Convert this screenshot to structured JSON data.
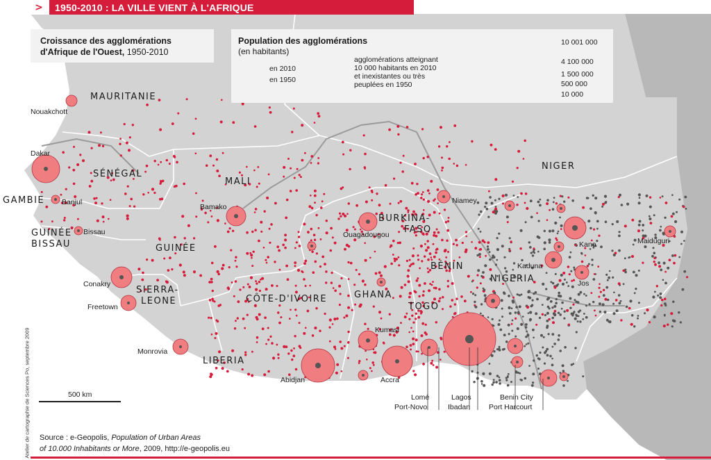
{
  "header": {
    "arrow": ">",
    "title": "1950-2010 : LA VILLE VIENT À L'AFRIQUE"
  },
  "title_box": {
    "line1": "Croissance des agglomérations",
    "line2_bold": "d'Afrique de l'Ouest,",
    "line2_rest": " 1950-2010"
  },
  "legend": {
    "title": "Population des agglomérations",
    "subtitle": "(en habitants)",
    "label_2010": "en 2010",
    "label_1950": "en 1950",
    "dots_text": [
      "agglomérations atteignant",
      "10 000 habitants en 2010",
      "et inexistantes ou très",
      "peuplées en 1950"
    ],
    "size_values": [
      "10 001 000",
      "4 100 000",
      "1 500 000",
      "500 000",
      "10 000"
    ]
  },
  "countries": [
    "MAURITANIE",
    "SÉNÉGAL",
    "MALI",
    "GAMBIE",
    "GUINÉE",
    "BISSAU",
    "GUINÉE",
    "SIERRA-",
    "LEONE",
    "CÔTE-D'IVOIRE",
    "LIBERIA",
    "GHANA",
    "TOGO",
    "BÉNIN",
    "BURKINA-",
    "FASO",
    "NIGER",
    "NIGERIA"
  ],
  "cities": [
    "Nouakchott",
    "Dakar",
    "Banjul",
    "Bissau",
    "Bamako",
    "Conakry",
    "Freetown",
    "Monrovia",
    "Abidjan",
    "Accra",
    "Kumasi",
    "Ouagadougou",
    "Niamey",
    "Lomé",
    "Port-Novo",
    "Lagos",
    "Ibadan",
    "Benin City",
    "Port Harcourt",
    "Kano",
    "Kaduna",
    "Jos",
    "Maiduguri"
  ],
  "scale": "500 km",
  "source": {
    "prefix": "Source : e-Geopolis, ",
    "italic1": "Population of Urban Areas",
    "italic2": "of 10.000 Inhabitants or More",
    "rest2": ", 2009, http://e-geopolis.eu"
  },
  "credit": "Atelier de cartographie de Sciences Po, septembre 2009",
  "colors": {
    "accent": "#d51c3a",
    "land_focus": "#d3d3d3",
    "land_other": "#b8b8b8",
    "sea": "#ffffff",
    "circle_2010": "#f07d80",
    "circle_1950": "#555555",
    "dot_new": "#d51c3a"
  }
}
